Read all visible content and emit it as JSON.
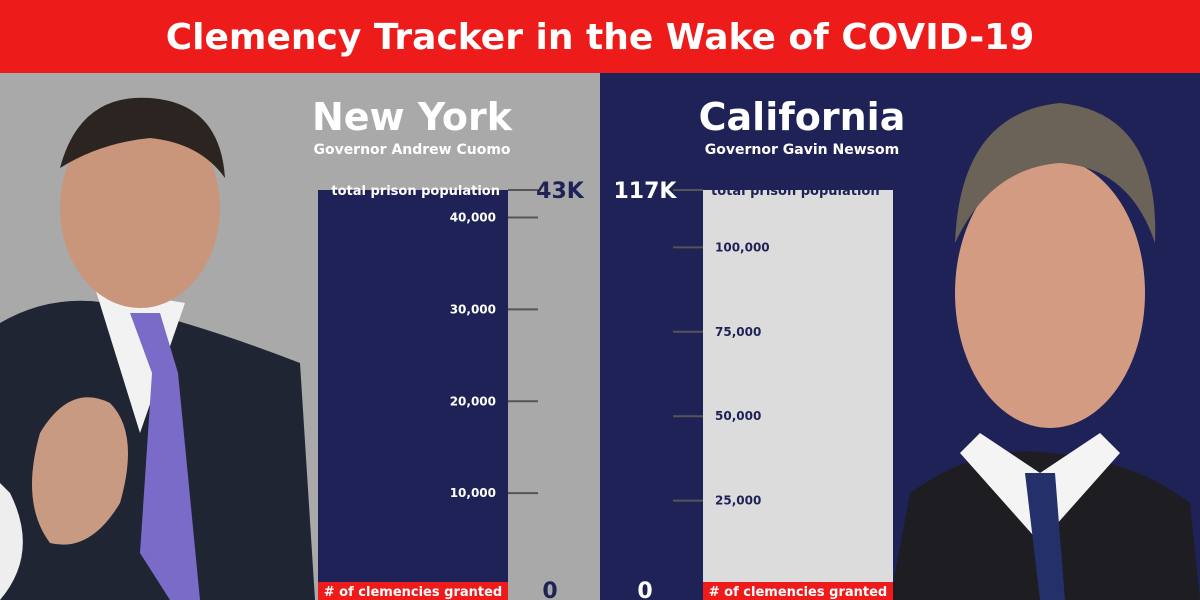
{
  "title": "Clemency Tracker in the Wake of COVID-19",
  "new_york": {
    "state": "New York",
    "governor": "Governor Andrew Cuomo"
  },
  "california": {
    "state": "California",
    "governor": "Governor Gavin Newsom"
  },
  "colors": {
    "banner": "#ee1b1b",
    "navy": "#1f2257",
    "gray": "#a9a9a9",
    "light_bar": "#dcdcdc",
    "clemency_bar": "#ee1b1b"
  },
  "chart_data": [
    {
      "type": "bar",
      "name": "New York",
      "top_label": "total prison population",
      "top_value_label": "43K",
      "total": 43000,
      "bottom_label": "# of clemencies granted",
      "bottom_value_label": "0",
      "clemencies": 0,
      "ticks": [
        10000,
        20000,
        30000,
        40000
      ],
      "tick_labels": [
        "10,000",
        "20,000",
        "30,000",
        "40,000"
      ],
      "ylim": [
        0,
        43000
      ]
    },
    {
      "type": "bar",
      "name": "California",
      "top_label": "total prison population",
      "top_value_label": "117K",
      "total": 117000,
      "bottom_label": "# of clemencies granted",
      "bottom_value_label": "0",
      "clemencies": 0,
      "ticks": [
        25000,
        50000,
        75000,
        100000
      ],
      "tick_labels": [
        "25,000",
        "50,000",
        "75,000",
        "100,000"
      ],
      "ylim": [
        0,
        117000
      ]
    }
  ]
}
